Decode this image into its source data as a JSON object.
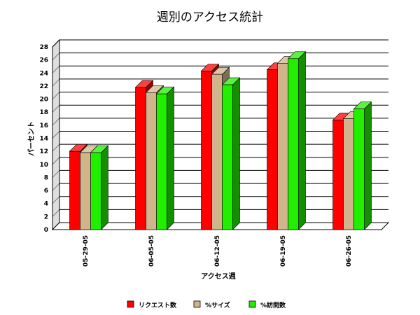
{
  "chart_data": {
    "type": "bar",
    "title": "週別のアクセス統計",
    "xlabel": "アクセス週",
    "ylabel": "パーセント",
    "categories": [
      "05-29-05",
      "06-05-05",
      "06-12-05",
      "06-19-05",
      "06-26-05"
    ],
    "ylim": [
      0,
      28
    ],
    "yticks": [
      0,
      2,
      4,
      6,
      8,
      10,
      12,
      14,
      16,
      18,
      20,
      22,
      24,
      26,
      28
    ],
    "grid": true,
    "legend_position": "bottom",
    "series": [
      {
        "name": "リクエスト数",
        "color": "#ff0000",
        "values": [
          12.0,
          21.8,
          24.3,
          24.5,
          16.8
        ]
      },
      {
        "name": "%サイズ",
        "color": "#d2b48c",
        "values": [
          11.8,
          21.0,
          23.8,
          25.5,
          17.0
        ]
      },
      {
        "name": "%訪問数",
        "color": "#22ee00",
        "values": [
          11.8,
          20.8,
          22.2,
          26.2,
          18.5
        ]
      }
    ]
  }
}
